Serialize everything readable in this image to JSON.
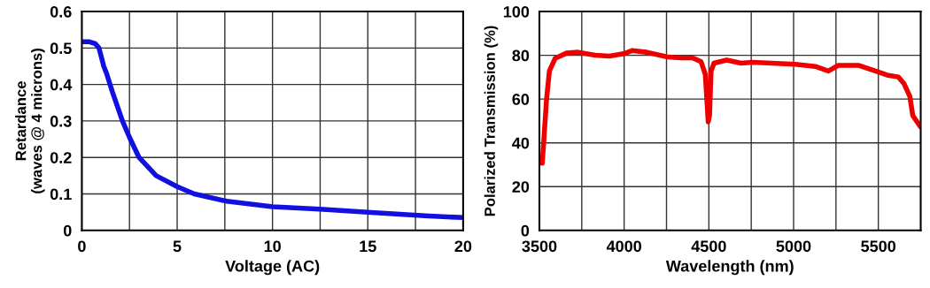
{
  "chart_data": [
    {
      "type": "line",
      "xlabel": "Voltage (AC)",
      "ylabel": "Retardance\n(waves @ 4 microns)",
      "grid": true,
      "xlim": [
        0,
        20
      ],
      "xticks": [
        0,
        {
          "value": 2.5,
          "label": null
        },
        5,
        {
          "value": 7.5,
          "label": null
        },
        10,
        {
          "value": 12.5,
          "label": null
        },
        15,
        {
          "value": 17.5,
          "label": null
        },
        20
      ],
      "ylim": [
        0,
        0.6
      ],
      "yticks": [
        0,
        0.1,
        0.2,
        0.3,
        0.4,
        0.5,
        0.6
      ],
      "series": [
        {
          "color": "#1010e0",
          "x": [
            0,
            0.4,
            0.7,
            0.9,
            1.0,
            1.15,
            1.3,
            1.6,
            2.13,
            2.5,
            3.0,
            3.9,
            5.0,
            5.9,
            7.6,
            10,
            12.5,
            15,
            18,
            20
          ],
          "values": [
            0.517,
            0.517,
            0.512,
            0.5,
            0.48,
            0.45,
            0.43,
            0.38,
            0.3,
            0.255,
            0.2,
            0.15,
            0.12,
            0.1,
            0.08,
            0.065,
            0.058,
            0.05,
            0.04,
            0.035
          ]
        }
      ]
    },
    {
      "type": "line",
      "xlabel": "Wavelength (nm)",
      "ylabel": "Polarized Transmission (%)",
      "grid": true,
      "xlim": [
        3500,
        5750
      ],
      "xticks": [
        3500,
        {
          "value": 3750,
          "label": null
        },
        4000,
        {
          "value": 4250,
          "label": null
        },
        4500,
        {
          "value": 4750,
          "label": null
        },
        5000,
        {
          "value": 5250,
          "label": null
        },
        5500
      ],
      "ylim": [
        0,
        100
      ],
      "yticks": [
        0,
        20,
        40,
        60,
        80,
        100
      ],
      "series": [
        {
          "color": "#ee0000",
          "x": [
            3517,
            3542,
            3559,
            3593,
            3660,
            3728,
            3829,
            3913,
            3998,
            4049,
            4133,
            4251,
            4335,
            4403,
            4454,
            4479,
            4496,
            4504,
            4513,
            4530,
            4605,
            4690,
            4757,
            5010,
            5128,
            5205,
            5264,
            5382,
            5483,
            5551,
            5618,
            5652,
            5686,
            5703,
            5748
          ],
          "values": [
            30.7,
            59.7,
            72.8,
            78.6,
            81,
            81.4,
            80,
            79.6,
            80.7,
            82.2,
            81.4,
            79.3,
            78.8,
            78.8,
            77.1,
            71.3,
            49.6,
            52.5,
            72.8,
            76.4,
            77.8,
            76.4,
            76.8,
            75.9,
            74.9,
            72.8,
            75.4,
            75.4,
            72.8,
            71,
            70.1,
            67,
            61.2,
            52.5,
            47.4
          ]
        }
      ]
    }
  ]
}
